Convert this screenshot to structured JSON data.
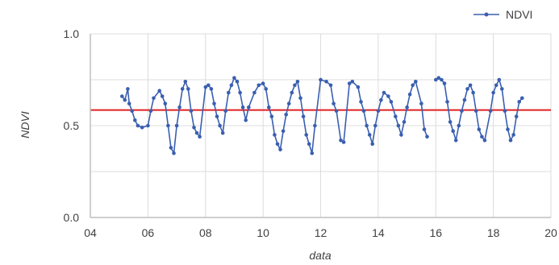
{
  "chart_data": {
    "type": "line",
    "title": "",
    "xlabel": "data",
    "ylabel": "NDVI",
    "xlim": [
      4,
      20
    ],
    "ylim": [
      0,
      1
    ],
    "x_ticks": [
      4,
      6,
      8,
      10,
      12,
      14,
      16,
      18,
      20
    ],
    "x_tick_labels": [
      "04",
      "06",
      "08",
      "10",
      "12",
      "14",
      "16",
      "18",
      "20"
    ],
    "y_ticks": [
      0,
      0.5,
      1
    ],
    "y_tick_labels": [
      "0.0",
      "0.5",
      "1.0"
    ],
    "grid": true,
    "legend": {
      "position": "top-right",
      "entries": [
        "NDVI"
      ]
    },
    "reference_line": {
      "y": 0.585,
      "color": "#e02020"
    },
    "series": [
      {
        "name": "NDVI",
        "color": "#3a5fb0",
        "points": [
          [
            5.1,
            0.66
          ],
          [
            5.2,
            0.64
          ],
          [
            5.3,
            0.7
          ],
          [
            5.35,
            0.62
          ],
          [
            5.45,
            0.58
          ],
          [
            5.55,
            0.53
          ],
          [
            5.65,
            0.5
          ],
          [
            5.8,
            0.49
          ],
          [
            6.0,
            0.5
          ],
          [
            6.1,
            0.58
          ],
          [
            6.2,
            0.65
          ],
          [
            6.4,
            0.69
          ],
          [
            6.5,
            0.66
          ],
          [
            6.6,
            0.62
          ],
          [
            6.7,
            0.5
          ],
          [
            6.8,
            0.38
          ],
          [
            6.9,
            0.35
          ],
          [
            7.0,
            0.5
          ],
          [
            7.1,
            0.6
          ],
          [
            7.2,
            0.7
          ],
          [
            7.3,
            0.74
          ],
          [
            7.4,
            0.7
          ],
          [
            7.5,
            0.58
          ],
          [
            7.6,
            0.49
          ],
          [
            7.7,
            0.46
          ],
          [
            7.8,
            0.44
          ],
          [
            8.0,
            0.71
          ],
          [
            8.1,
            0.72
          ],
          [
            8.2,
            0.7
          ],
          [
            8.3,
            0.62
          ],
          [
            8.4,
            0.55
          ],
          [
            8.5,
            0.5
          ],
          [
            8.6,
            0.46
          ],
          [
            8.7,
            0.58
          ],
          [
            8.8,
            0.68
          ],
          [
            8.9,
            0.72
          ],
          [
            9.0,
            0.76
          ],
          [
            9.1,
            0.74
          ],
          [
            9.2,
            0.68
          ],
          [
            9.3,
            0.6
          ],
          [
            9.4,
            0.53
          ],
          [
            9.5,
            0.6
          ],
          [
            9.7,
            0.68
          ],
          [
            9.85,
            0.72
          ],
          [
            10.0,
            0.73
          ],
          [
            10.1,
            0.7
          ],
          [
            10.2,
            0.6
          ],
          [
            10.3,
            0.55
          ],
          [
            10.4,
            0.45
          ],
          [
            10.5,
            0.4
          ],
          [
            10.6,
            0.37
          ],
          [
            10.7,
            0.47
          ],
          [
            10.8,
            0.56
          ],
          [
            10.9,
            0.62
          ],
          [
            11.0,
            0.68
          ],
          [
            11.1,
            0.72
          ],
          [
            11.2,
            0.74
          ],
          [
            11.3,
            0.65
          ],
          [
            11.4,
            0.55
          ],
          [
            11.5,
            0.45
          ],
          [
            11.6,
            0.4
          ],
          [
            11.7,
            0.35
          ],
          [
            11.8,
            0.5
          ],
          [
            12.0,
            0.75
          ],
          [
            12.2,
            0.74
          ],
          [
            12.35,
            0.72
          ],
          [
            12.45,
            0.62
          ],
          [
            12.55,
            0.58
          ],
          [
            12.7,
            0.42
          ],
          [
            12.8,
            0.41
          ],
          [
            13.0,
            0.73
          ],
          [
            13.1,
            0.74
          ],
          [
            13.3,
            0.71
          ],
          [
            13.4,
            0.63
          ],
          [
            13.5,
            0.58
          ],
          [
            13.6,
            0.5
          ],
          [
            13.7,
            0.45
          ],
          [
            13.8,
            0.4
          ],
          [
            13.9,
            0.5
          ],
          [
            14.0,
            0.58
          ],
          [
            14.1,
            0.64
          ],
          [
            14.2,
            0.68
          ],
          [
            14.35,
            0.66
          ],
          [
            14.45,
            0.63
          ],
          [
            14.6,
            0.55
          ],
          [
            14.7,
            0.5
          ],
          [
            14.8,
            0.45
          ],
          [
            14.9,
            0.52
          ],
          [
            15.0,
            0.6
          ],
          [
            15.1,
            0.67
          ],
          [
            15.2,
            0.72
          ],
          [
            15.3,
            0.74
          ],
          [
            15.5,
            0.62
          ],
          [
            15.6,
            0.48
          ],
          [
            15.7,
            0.44
          ],
          [
            16.0,
            0.75
          ],
          [
            16.1,
            0.76
          ],
          [
            16.2,
            0.75
          ],
          [
            16.3,
            0.73
          ],
          [
            16.4,
            0.63
          ],
          [
            16.5,
            0.52
          ],
          [
            16.6,
            0.47
          ],
          [
            16.7,
            0.42
          ],
          [
            16.8,
            0.5
          ],
          [
            16.9,
            0.58
          ],
          [
            17.0,
            0.64
          ],
          [
            17.1,
            0.7
          ],
          [
            17.2,
            0.72
          ],
          [
            17.3,
            0.68
          ],
          [
            17.4,
            0.58
          ],
          [
            17.5,
            0.48
          ],
          [
            17.6,
            0.44
          ],
          [
            17.7,
            0.42
          ],
          [
            17.9,
            0.58
          ],
          [
            18.0,
            0.68
          ],
          [
            18.1,
            0.72
          ],
          [
            18.2,
            0.75
          ],
          [
            18.3,
            0.7
          ],
          [
            18.4,
            0.58
          ],
          [
            18.5,
            0.48
          ],
          [
            18.6,
            0.42
          ],
          [
            18.7,
            0.45
          ],
          [
            18.8,
            0.55
          ],
          [
            18.9,
            0.63
          ],
          [
            19.0,
            0.65
          ]
        ]
      }
    ]
  }
}
